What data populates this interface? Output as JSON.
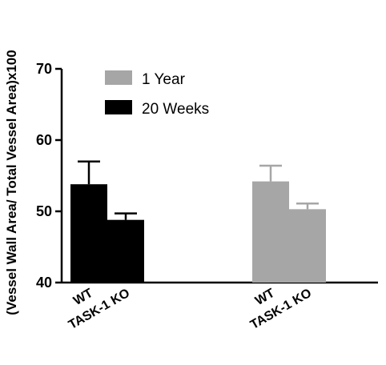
{
  "chart_data": {
    "type": "bar",
    "ylabel": "(Vessel Wall Area/ Total Vessel Area)x100",
    "ylim": [
      40,
      70
    ],
    "yticks": [
      40,
      50,
      60,
      70
    ],
    "grid": false,
    "legend_position": "top-left",
    "groups": [
      {
        "series": "20 Weeks",
        "color": "#000000",
        "bars": [
          {
            "category": "WT",
            "value": 53.8,
            "error": 3.2
          },
          {
            "category": "TASK-1 KO",
            "value": 48.8,
            "error": 0.9
          }
        ]
      },
      {
        "series": "1 Year",
        "color": "#a6a6a6",
        "bars": [
          {
            "category": "WT",
            "value": 54.2,
            "error": 2.2
          },
          {
            "category": "TASK-1 KO",
            "value": 50.3,
            "error": 0.8
          }
        ]
      }
    ],
    "legend": [
      {
        "label": "1 Year",
        "color": "#a6a6a6"
      },
      {
        "label": "20 Weeks",
        "color": "#000000"
      }
    ]
  }
}
